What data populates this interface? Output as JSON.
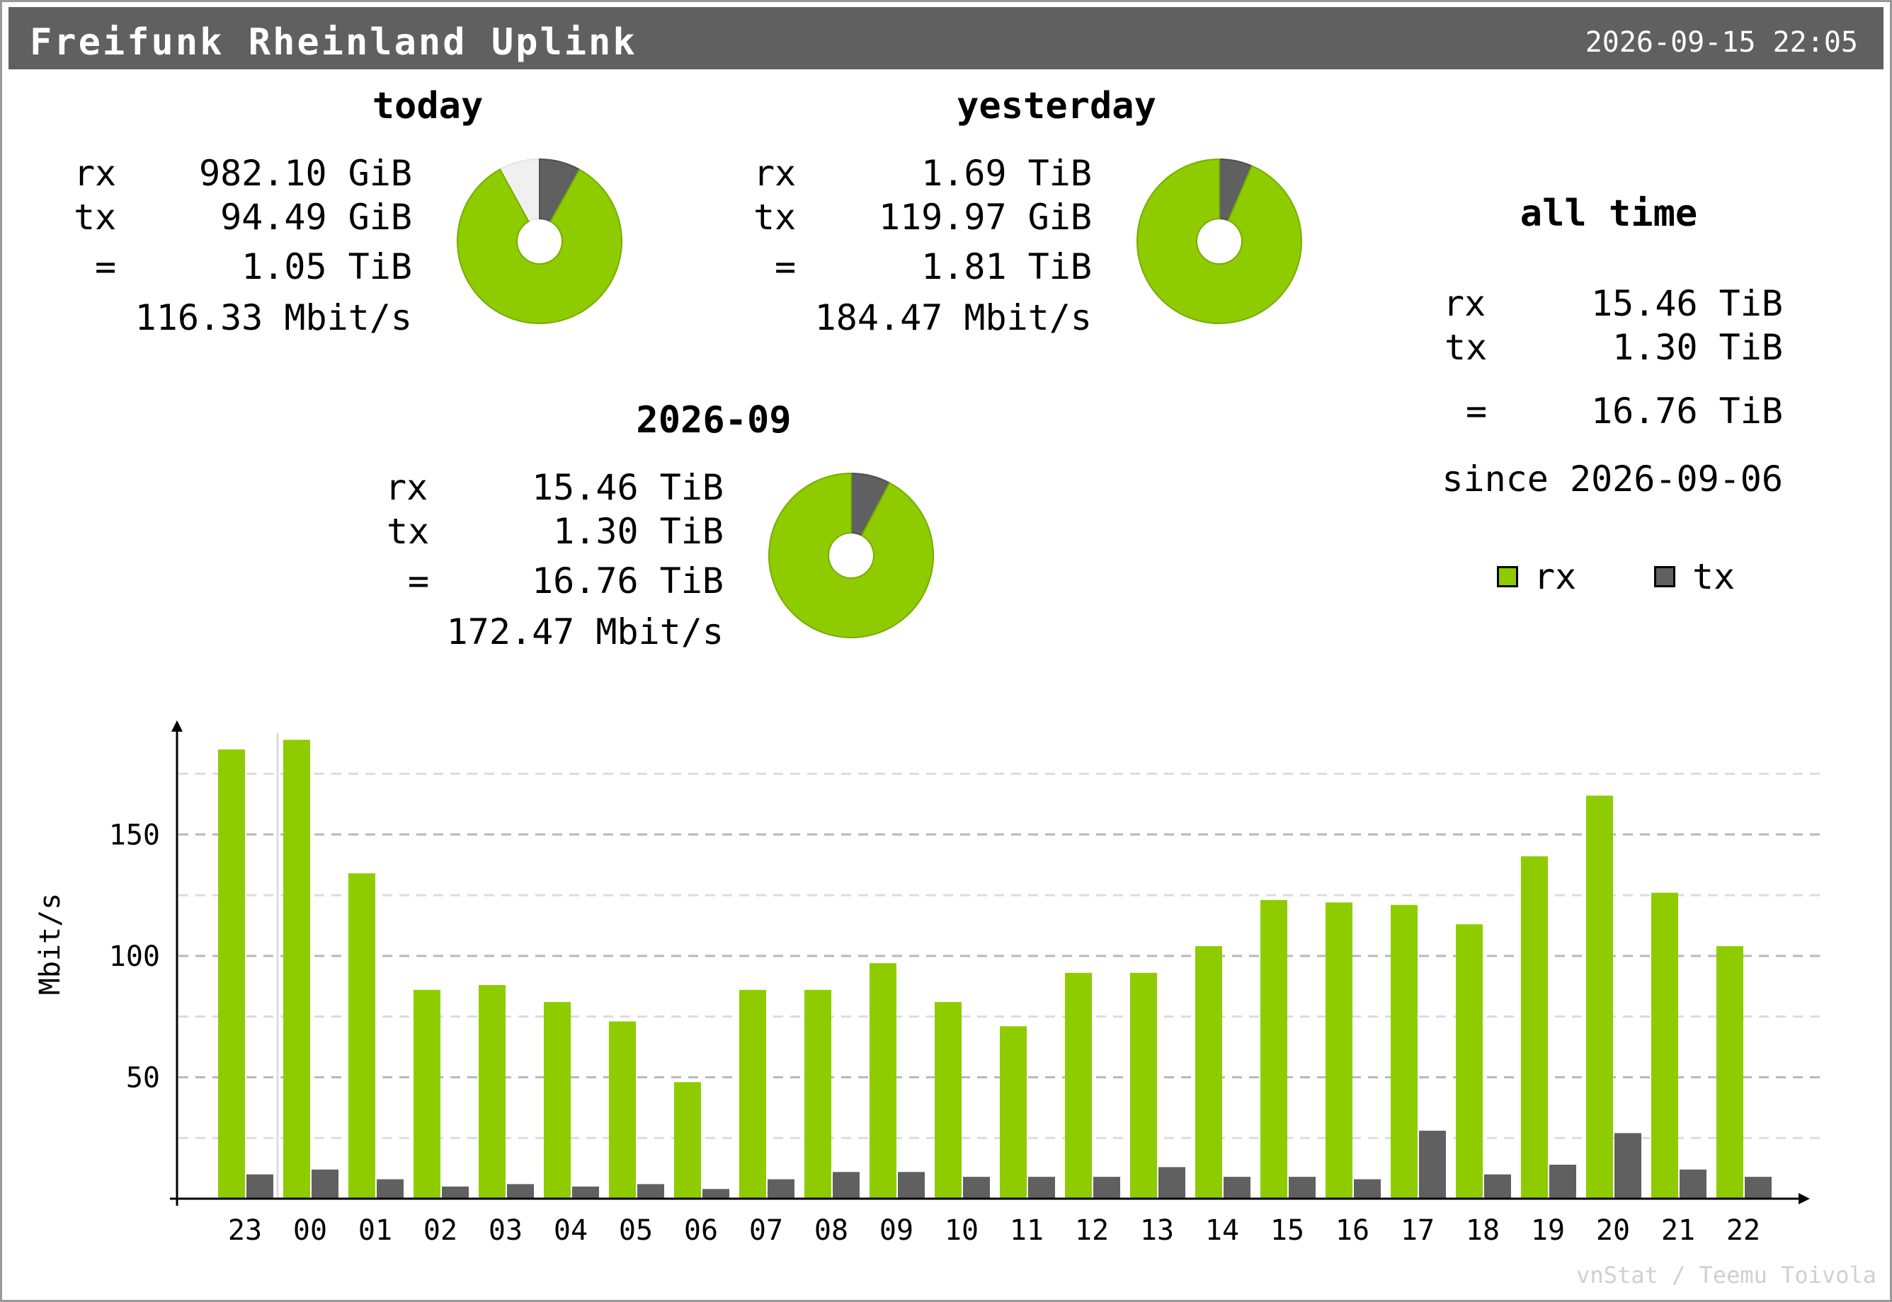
{
  "header": {
    "title": "Freifunk Rheinland Uplink",
    "datetime": "2026-09-15 22:05"
  },
  "colors": {
    "rx": "#8ecc00",
    "tx": "#606060",
    "remaining": "#f0f0f0",
    "header_bg": "#606060"
  },
  "summary": {
    "today": {
      "title": "today",
      "rx_label": "rx",
      "rx": "982.10 GiB",
      "tx_label": "tx",
      "tx": "94.49 GiB",
      "total_label": "=",
      "total": "1.05 TiB",
      "rate": "116.33 Mbit/s",
      "day_fraction": 0.92
    },
    "yesterday": {
      "title": "yesterday",
      "rx_label": "rx",
      "rx": "1.69 TiB",
      "tx_label": "tx",
      "tx": "119.97 GiB",
      "total_label": "=",
      "total": "1.81 TiB",
      "rate": "184.47 Mbit/s",
      "day_fraction": 1.0
    },
    "month": {
      "title": "2026-09",
      "rx_label": "rx",
      "rx": "15.46 TiB",
      "tx_label": "tx",
      "tx": "1.30 TiB",
      "total_label": "=",
      "total": "16.76 TiB",
      "rate": "172.47 Mbit/s",
      "day_fraction": 1.0
    },
    "alltime": {
      "title": "all time",
      "rx_label": "rx",
      "rx": "15.46 TiB",
      "tx_label": "tx",
      "tx": "1.30 TiB",
      "total_label": "=",
      "total": "16.76 TiB",
      "since": "since 2026-09-06"
    }
  },
  "legend": {
    "rx": "rx",
    "tx": "tx"
  },
  "chart_data": {
    "type": "bar",
    "title": "",
    "xlabel": "",
    "ylabel": "Mbit/s",
    "ylim": [
      0,
      197
    ],
    "yticks": [
      50,
      100,
      150
    ],
    "grid": true,
    "categories": [
      "23",
      "00",
      "01",
      "02",
      "03",
      "04",
      "05",
      "06",
      "07",
      "08",
      "09",
      "10",
      "11",
      "12",
      "13",
      "14",
      "15",
      "16",
      "17",
      "18",
      "19",
      "20",
      "21",
      "22"
    ],
    "series": [
      {
        "name": "rx",
        "values": [
          185,
          189,
          134,
          86,
          88,
          81,
          73,
          48,
          86,
          86,
          97,
          81,
          71,
          93,
          93,
          104,
          123,
          122,
          121,
          113,
          141,
          166,
          126,
          104
        ]
      },
      {
        "name": "tx",
        "values": [
          10,
          12,
          8,
          5,
          6,
          5,
          6,
          4,
          8,
          11,
          11,
          9,
          9,
          9,
          13,
          9,
          9,
          8,
          28,
          10,
          14,
          27,
          12,
          9
        ]
      }
    ]
  },
  "credit": "vnStat / Teemu Toivola"
}
